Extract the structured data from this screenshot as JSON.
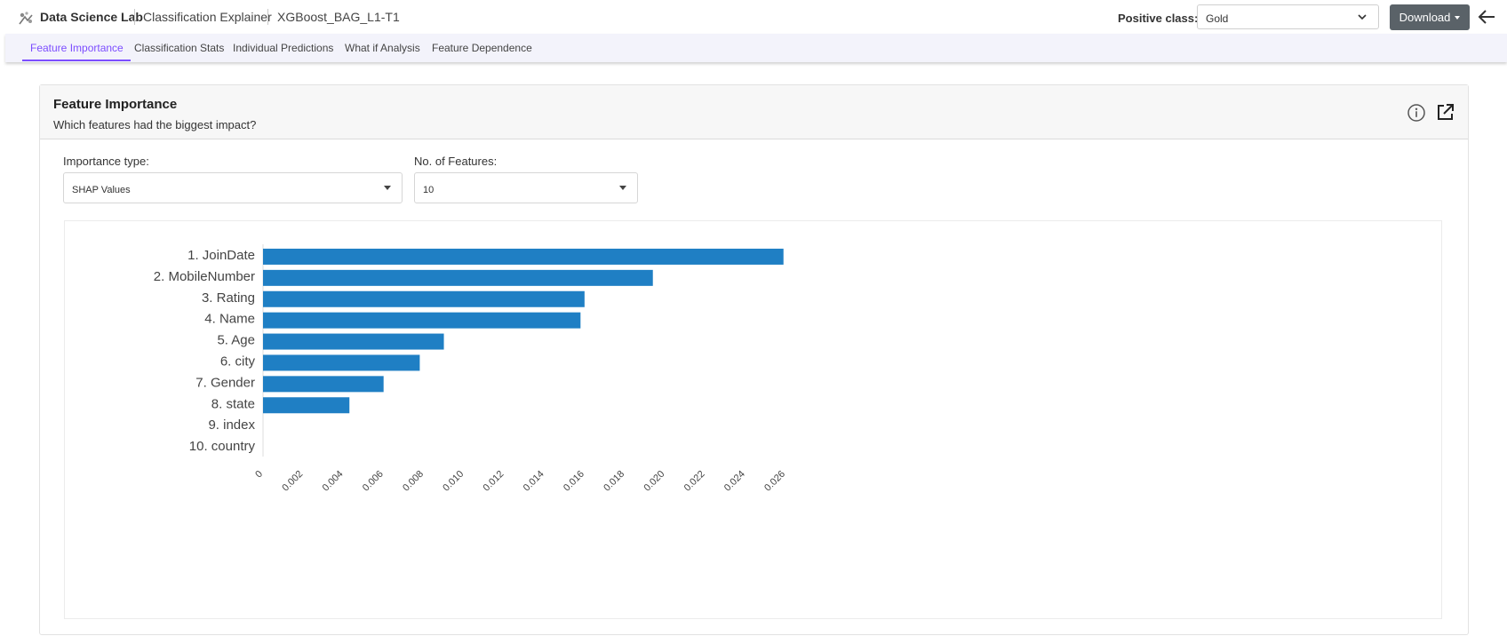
{
  "header": {
    "brand": "Data Science Lab",
    "breadcrumbs": [
      "Classification Explainer",
      "XGBoost_BAG_L1-T1"
    ],
    "positive_class_label": "Positive class:",
    "positive_class_value": "Gold",
    "download_label": "Download"
  },
  "tabs": [
    {
      "label": "Feature Importance",
      "active": true
    },
    {
      "label": "Classification Stats",
      "active": false
    },
    {
      "label": "Individual Predictions",
      "active": false
    },
    {
      "label": "What if Analysis",
      "active": false
    },
    {
      "label": "Feature Dependence",
      "active": false
    }
  ],
  "card": {
    "title": "Feature Importance",
    "subtitle": "Which features had the biggest impact?",
    "importance_type_label": "Importance type:",
    "importance_type_value": "SHAP Values",
    "num_features_label": "No. of Features:",
    "num_features_value": "10"
  },
  "colors": {
    "accent": "#7c4dff",
    "bar": "#1f7fc4",
    "download_bg": "#5a6268"
  },
  "chart_data": {
    "type": "bar",
    "orientation": "horizontal",
    "categories": [
      "1. JoinDate",
      "2. MobileNumber",
      "3. Rating",
      "4. Name",
      "5. Age",
      "6. city",
      "7. Gender",
      "8. state",
      "9. index",
      "10. country"
    ],
    "values": [
      0.0259,
      0.0194,
      0.016,
      0.0158,
      0.009,
      0.0078,
      0.006,
      0.0043,
      0,
      0
    ],
    "xlim": [
      0,
      0.026
    ],
    "xticks": [
      "0",
      "0.002",
      "0.004",
      "0.006",
      "0.008",
      "0.010",
      "0.012",
      "0.014",
      "0.016",
      "0.018",
      "0.020",
      "0.022",
      "0.024",
      "0.026"
    ],
    "title": "",
    "xlabel": "",
    "ylabel": "",
    "grid": false
  }
}
